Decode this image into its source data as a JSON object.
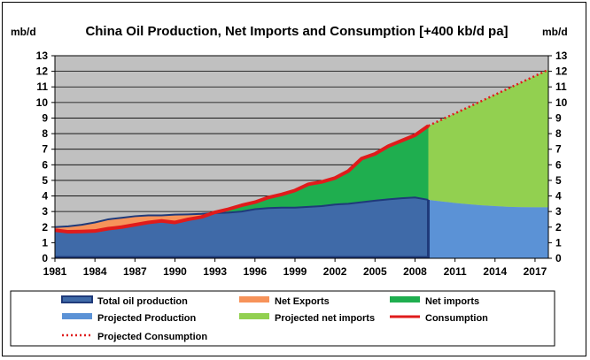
{
  "chart_data": {
    "type": "area",
    "title": "China Oil Production, Net Imports and Consumption [+400 kb/d pa]",
    "ylabel_left": "mb/d",
    "ylabel_right": "mb/d",
    "ylim": [
      0,
      13
    ],
    "yticks": [
      0,
      1,
      2,
      3,
      4,
      5,
      6,
      7,
      8,
      9,
      10,
      11,
      12,
      13
    ],
    "xlim": [
      1981,
      2018
    ],
    "xticks": [
      1981,
      1984,
      1987,
      1990,
      1993,
      1996,
      1999,
      2002,
      2005,
      2008,
      2011,
      2014,
      2017
    ],
    "grid": "horizontal",
    "legend_position": "bottom",
    "colors": {
      "plot_background": "#c0c0c0",
      "total_oil_production": "#3f6aa8",
      "total_oil_production_line": "#1f3a7a",
      "net_exports": "#f7935a",
      "net_imports": "#1fae4f",
      "projected_production": "#5b92d6",
      "projected_net_imports": "#92d050",
      "consumption": "#e01b1b",
      "projected_consumption": "#e01b1b"
    },
    "series": [
      {
        "name": "Total oil production",
        "x": [
          1981,
          1982,
          1983,
          1984,
          1985,
          1986,
          1987,
          1988,
          1989,
          1990,
          1991,
          1992,
          1993,
          1994,
          1995,
          1996,
          1997,
          1998,
          1999,
          2000,
          2001,
          2002,
          2003,
          2004,
          2005,
          2006,
          2007,
          2008,
          2009
        ],
        "values": [
          2.0,
          2.05,
          2.15,
          2.3,
          2.5,
          2.6,
          2.7,
          2.75,
          2.75,
          2.8,
          2.82,
          2.85,
          2.9,
          2.93,
          3.0,
          3.15,
          3.22,
          3.25,
          3.25,
          3.3,
          3.35,
          3.45,
          3.5,
          3.6,
          3.7,
          3.78,
          3.85,
          3.9,
          3.75
        ]
      },
      {
        "name": "Consumption",
        "x": [
          1981,
          1982,
          1983,
          1984,
          1985,
          1986,
          1987,
          1988,
          1989,
          1990,
          1991,
          1992,
          1993,
          1994,
          1995,
          1996,
          1997,
          1998,
          1999,
          2000,
          2001,
          2002,
          2003,
          2004,
          2005,
          2006,
          2007,
          2008,
          2009
        ],
        "values": [
          1.8,
          1.7,
          1.72,
          1.75,
          1.9,
          2.0,
          2.15,
          2.3,
          2.4,
          2.3,
          2.5,
          2.65,
          2.95,
          3.15,
          3.4,
          3.6,
          3.9,
          4.1,
          4.35,
          4.75,
          4.9,
          5.15,
          5.6,
          6.4,
          6.7,
          7.2,
          7.55,
          7.9,
          8.5
        ]
      },
      {
        "name": "Projected Production",
        "x": [
          2009,
          2010,
          2011,
          2012,
          2013,
          2014,
          2015,
          2016,
          2017,
          2018
        ],
        "values": [
          3.75,
          3.65,
          3.55,
          3.47,
          3.4,
          3.35,
          3.3,
          3.28,
          3.27,
          3.27
        ]
      },
      {
        "name": "Projected Consumption",
        "x": [
          2009,
          2010,
          2011,
          2012,
          2013,
          2014,
          2015,
          2016,
          2017,
          2018
        ],
        "values": [
          8.5,
          8.9,
          9.3,
          9.7,
          10.1,
          10.5,
          10.9,
          11.3,
          11.7,
          12.1
        ]
      }
    ],
    "legend": [
      {
        "name": "Total oil production",
        "style": "bar-outline",
        "color_key": "total_oil_production"
      },
      {
        "name": "Net Exports",
        "style": "bar",
        "color_key": "net_exports"
      },
      {
        "name": "Net imports",
        "style": "bar",
        "color_key": "net_imports"
      },
      {
        "name": "Projected Production",
        "style": "bar",
        "color_key": "projected_production"
      },
      {
        "name": "Projected net imports",
        "style": "bar",
        "color_key": "projected_net_imports"
      },
      {
        "name": "Consumption",
        "style": "line",
        "color_key": "consumption"
      },
      {
        "name": "Projected Consumption",
        "style": "dotted",
        "color_key": "projected_consumption"
      }
    ]
  }
}
